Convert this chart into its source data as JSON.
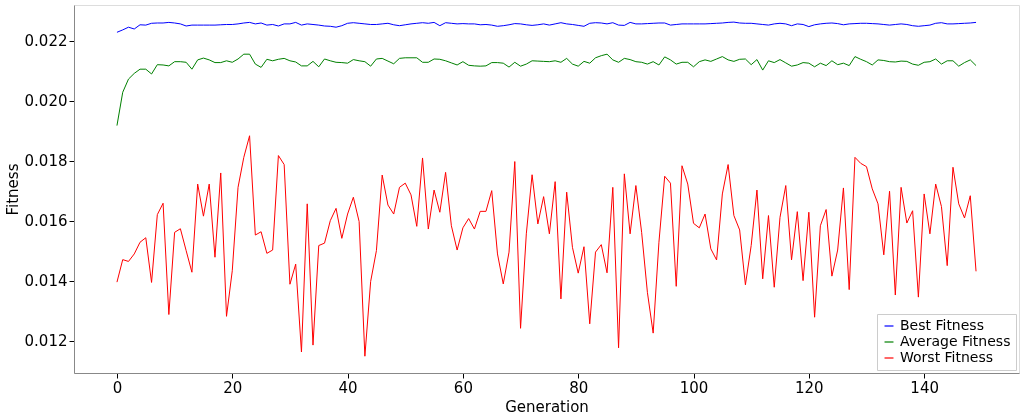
{
  "chart_data": {
    "type": "line",
    "xlabel": "Generation",
    "ylabel": "Fitness",
    "x": [
      0,
      1,
      2,
      3,
      4,
      5,
      6,
      7,
      8,
      9,
      10,
      11,
      12,
      13,
      14,
      15,
      16,
      17,
      18,
      19,
      20,
      21,
      22,
      23,
      24,
      25,
      26,
      27,
      28,
      29,
      30,
      31,
      32,
      33,
      34,
      35,
      36,
      37,
      38,
      39,
      40,
      41,
      42,
      43,
      44,
      45,
      46,
      47,
      48,
      49,
      50,
      51,
      52,
      53,
      54,
      55,
      56,
      57,
      58,
      59,
      60,
      61,
      62,
      63,
      64,
      65,
      66,
      67,
      68,
      69,
      70,
      71,
      72,
      73,
      74,
      75,
      76,
      77,
      78,
      79,
      80,
      81,
      82,
      83,
      84,
      85,
      86,
      87,
      88,
      89,
      90,
      91,
      92,
      93,
      94,
      95,
      96,
      97,
      98,
      99,
      100,
      101,
      102,
      103,
      104,
      105,
      106,
      107,
      108,
      109,
      110,
      111,
      112,
      113,
      114,
      115,
      116,
      117,
      118,
      119,
      120,
      121,
      122,
      123,
      124,
      125,
      126,
      127,
      128,
      129,
      130,
      131,
      132,
      133,
      134,
      135,
      136,
      137,
      138,
      139,
      140,
      141,
      142,
      143,
      144,
      145,
      146,
      147,
      148,
      149
    ],
    "xlim": [
      -7.45,
      156.45
    ],
    "xticks": [
      0,
      20,
      40,
      60,
      80,
      100,
      120,
      140
    ],
    "ylim": [
      0.01093,
      0.0232
    ],
    "yticks": [
      0.012,
      0.014,
      0.016,
      0.018,
      {
        "value": 0.02,
        "label": "0.020"
      },
      0.022
    ],
    "grid": false,
    "legend": "bottom right",
    "line_style": "solid",
    "marker": "none",
    "series": [
      {
        "name": "Best Fitness",
        "color": "#0000ff",
        "values": [
          0.02229,
          0.02237,
          0.02246,
          0.0224,
          0.02254,
          0.02253,
          0.02259,
          0.0226,
          0.0226,
          0.02262,
          0.0226,
          0.02257,
          0.0225,
          0.02253,
          0.02253,
          0.02253,
          0.02253,
          0.02253,
          0.02254,
          0.02255,
          0.02255,
          0.02257,
          0.0226,
          0.02262,
          0.02257,
          0.0226,
          0.02253,
          0.02255,
          0.0225,
          0.02257,
          0.02257,
          0.02262,
          0.02253,
          0.02257,
          0.02255,
          0.02253,
          0.0225,
          0.02249,
          0.02246,
          0.02251,
          0.02259,
          0.02261,
          0.02259,
          0.02257,
          0.02255,
          0.02255,
          0.02257,
          0.02259,
          0.02254,
          0.02251,
          0.02254,
          0.02257,
          0.02259,
          0.02261,
          0.02259,
          0.02262,
          0.02251,
          0.02261,
          0.02259,
          0.02257,
          0.02258,
          0.02257,
          0.02257,
          0.02254,
          0.02255,
          0.02253,
          0.02249,
          0.02251,
          0.02254,
          0.02258,
          0.02257,
          0.02254,
          0.02252,
          0.02254,
          0.02257,
          0.02253,
          0.02257,
          0.02261,
          0.02257,
          0.02255,
          0.02252,
          0.02249,
          0.02259,
          0.02261,
          0.0226,
          0.02257,
          0.02261,
          0.02253,
          0.02252,
          0.02262,
          0.02257,
          0.02257,
          0.02258,
          0.02259,
          0.0226,
          0.0226,
          0.02253,
          0.02255,
          0.02257,
          0.02257,
          0.02257,
          0.02257,
          0.02257,
          0.02258,
          0.02259,
          0.0226,
          0.02262,
          0.02263,
          0.0226,
          0.02259,
          0.02259,
          0.02257,
          0.02255,
          0.02253,
          0.02257,
          0.02259,
          0.02257,
          0.02251,
          0.02257,
          0.02255,
          0.02248,
          0.02254,
          0.02257,
          0.02259,
          0.0226,
          0.02258,
          0.02254,
          0.02257,
          0.02258,
          0.02259,
          0.02259,
          0.02258,
          0.02257,
          0.02255,
          0.02253,
          0.02255,
          0.02257,
          0.02255,
          0.02251,
          0.02249,
          0.02251,
          0.02253,
          0.02259,
          0.02261,
          0.02257,
          0.02257,
          0.02258,
          0.02259,
          0.0226,
          0.02262
        ]
      },
      {
        "name": "Average Fitness",
        "color": "#008000",
        "values": [
          0.01918,
          0.02029,
          0.02073,
          0.02092,
          0.02106,
          0.02106,
          0.0209,
          0.02121,
          0.0212,
          0.02117,
          0.02131,
          0.02131,
          0.02129,
          0.02106,
          0.02137,
          0.02143,
          0.02137,
          0.02128,
          0.02128,
          0.02134,
          0.02129,
          0.0214,
          0.02156,
          0.02156,
          0.02123,
          0.02112,
          0.02139,
          0.02134,
          0.02139,
          0.02142,
          0.02134,
          0.0213,
          0.02117,
          0.02117,
          0.02132,
          0.02114,
          0.0214,
          0.02134,
          0.02129,
          0.02128,
          0.02126,
          0.02138,
          0.02134,
          0.02131,
          0.02116,
          0.0214,
          0.02142,
          0.02133,
          0.02124,
          0.02142,
          0.02144,
          0.02144,
          0.02144,
          0.02129,
          0.02129,
          0.0214,
          0.02139,
          0.02134,
          0.02127,
          0.0212,
          0.02131,
          0.02119,
          0.02117,
          0.02116,
          0.02117,
          0.02128,
          0.02128,
          0.02126,
          0.02113,
          0.02129,
          0.02116,
          0.02123,
          0.02134,
          0.02133,
          0.02132,
          0.02131,
          0.02134,
          0.02129,
          0.02142,
          0.02123,
          0.02116,
          0.02132,
          0.02126,
          0.02144,
          0.02151,
          0.02156,
          0.02137,
          0.02129,
          0.02142,
          0.02138,
          0.02131,
          0.02129,
          0.02123,
          0.02131,
          0.0212,
          0.02147,
          0.02137,
          0.02123,
          0.02129,
          0.02129,
          0.02114,
          0.02131,
          0.02137,
          0.02132,
          0.0214,
          0.02148,
          0.02137,
          0.02132,
          0.02139,
          0.0214,
          0.02121,
          0.02138,
          0.02103,
          0.02134,
          0.02128,
          0.02138,
          0.02127,
          0.02116,
          0.0212,
          0.02128,
          0.02126,
          0.02114,
          0.02126,
          0.02118,
          0.02134,
          0.02121,
          0.02126,
          0.02118,
          0.02148,
          0.02139,
          0.02131,
          0.0212,
          0.02137,
          0.02135,
          0.02131,
          0.0213,
          0.02133,
          0.02132,
          0.02123,
          0.02119,
          0.02129,
          0.02131,
          0.0214,
          0.02123,
          0.02134,
          0.02134,
          0.02116,
          0.02128,
          0.02137,
          0.02118
        ]
      },
      {
        "name": "Worst Fitness",
        "color": "#ff0000",
        "values": [
          0.01396,
          0.01471,
          0.01465,
          0.0149,
          0.01529,
          0.01544,
          0.01395,
          0.01621,
          0.01659,
          0.01288,
          0.01562,
          0.01574,
          0.01501,
          0.01429,
          0.01723,
          0.01616,
          0.01723,
          0.01479,
          0.0176,
          0.01282,
          0.01434,
          0.01712,
          0.01812,
          0.01884,
          0.01553,
          0.01564,
          0.01492,
          0.01503,
          0.01818,
          0.01788,
          0.01389,
          0.01456,
          0.01163,
          0.01657,
          0.01186,
          0.01518,
          0.01526,
          0.01601,
          0.01642,
          0.01542,
          0.01623,
          0.01679,
          0.01598,
          0.01149,
          0.01398,
          0.01501,
          0.01753,
          0.01653,
          0.01623,
          0.01712,
          0.01726,
          0.01687,
          0.01582,
          0.0181,
          0.01573,
          0.01703,
          0.01629,
          0.01762,
          0.01584,
          0.01503,
          0.01577,
          0.01608,
          0.01573,
          0.01632,
          0.01632,
          0.01701,
          0.0149,
          0.0139,
          0.01496,
          0.01798,
          0.01242,
          0.01557,
          0.01754,
          0.0159,
          0.01681,
          0.01557,
          0.01731,
          0.0134,
          0.01696,
          0.01512,
          0.01426,
          0.01514,
          0.01257,
          0.01496,
          0.01521,
          0.01427,
          0.01712,
          0.01177,
          0.01757,
          0.01557,
          0.01718,
          0.01562,
          0.01362,
          0.01226,
          0.01529,
          0.01749,
          0.01726,
          0.01382,
          0.01784,
          0.01723,
          0.01592,
          0.01577,
          0.01623,
          0.01507,
          0.0147,
          0.0169,
          0.01788,
          0.01618,
          0.0157,
          0.01387,
          0.01518,
          0.01703,
          0.01407,
          0.01618,
          0.01379,
          0.01612,
          0.01718,
          0.0147,
          0.01631,
          0.01401,
          0.01629,
          0.01279,
          0.01584,
          0.01638,
          0.01416,
          0.01503,
          0.0171,
          0.01371,
          0.01812,
          0.01792,
          0.01781,
          0.01707,
          0.01657,
          0.01487,
          0.01699,
          0.01353,
          0.01712,
          0.01593,
          0.01634,
          0.01346,
          0.0169,
          0.01557,
          0.01723,
          0.01648,
          0.01451,
          0.01779,
          0.01657,
          0.0161,
          0.01684,
          0.01432
        ]
      }
    ]
  }
}
